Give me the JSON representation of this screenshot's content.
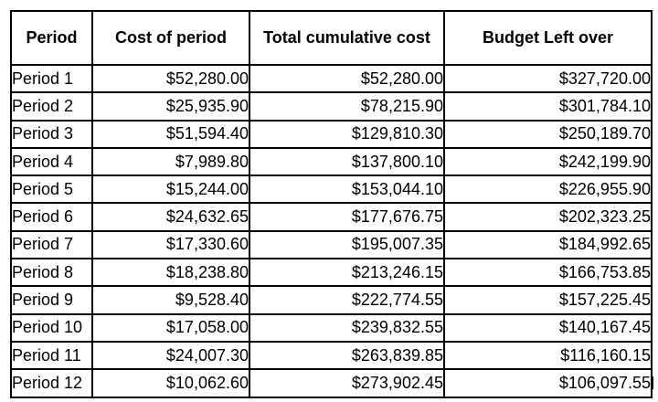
{
  "table": {
    "headers": [
      "Period",
      "Cost of period",
      "Total cumulative cost",
      "Budget Left over"
    ],
    "rows": [
      [
        "Period 1",
        "$52,280.00",
        "$52,280.00",
        "$327,720.00"
      ],
      [
        "Period 2",
        "$25,935.90",
        "$78,215.90",
        "$301,784.10"
      ],
      [
        "Period 3",
        "$51,594.40",
        "$129,810.30",
        "$250,189.70"
      ],
      [
        "Period 4",
        "$7,989.80",
        "$137,800.10",
        "$242,199.90"
      ],
      [
        "Period 5",
        "$15,244.00",
        "$153,044.10",
        "$226,955.90"
      ],
      [
        "Period 6",
        "$24,632.65",
        "$177,676.75",
        "$202,323.25"
      ],
      [
        "Period 7",
        "$17,330.60",
        "$195,007.35",
        "$184,992.65"
      ],
      [
        "Period 8",
        "$18,238.80",
        "$213,246.15",
        "$166,753.85"
      ],
      [
        "Period 9",
        "$9,528.40",
        "$222,774.55",
        "$157,225.45"
      ],
      [
        "Period 10",
        "$17,058.00",
        "$239,832.55",
        "$140,167.45"
      ],
      [
        "Period 11",
        "$24,007.30",
        "$263,839.85",
        "$116,160.15"
      ],
      [
        "Period 12",
        "$10,062.60",
        "$273,902.45",
        "$106,097.55"
      ]
    ]
  },
  "colors": {
    "border": "#000000",
    "background": "#ffffff",
    "text": "#000000"
  }
}
